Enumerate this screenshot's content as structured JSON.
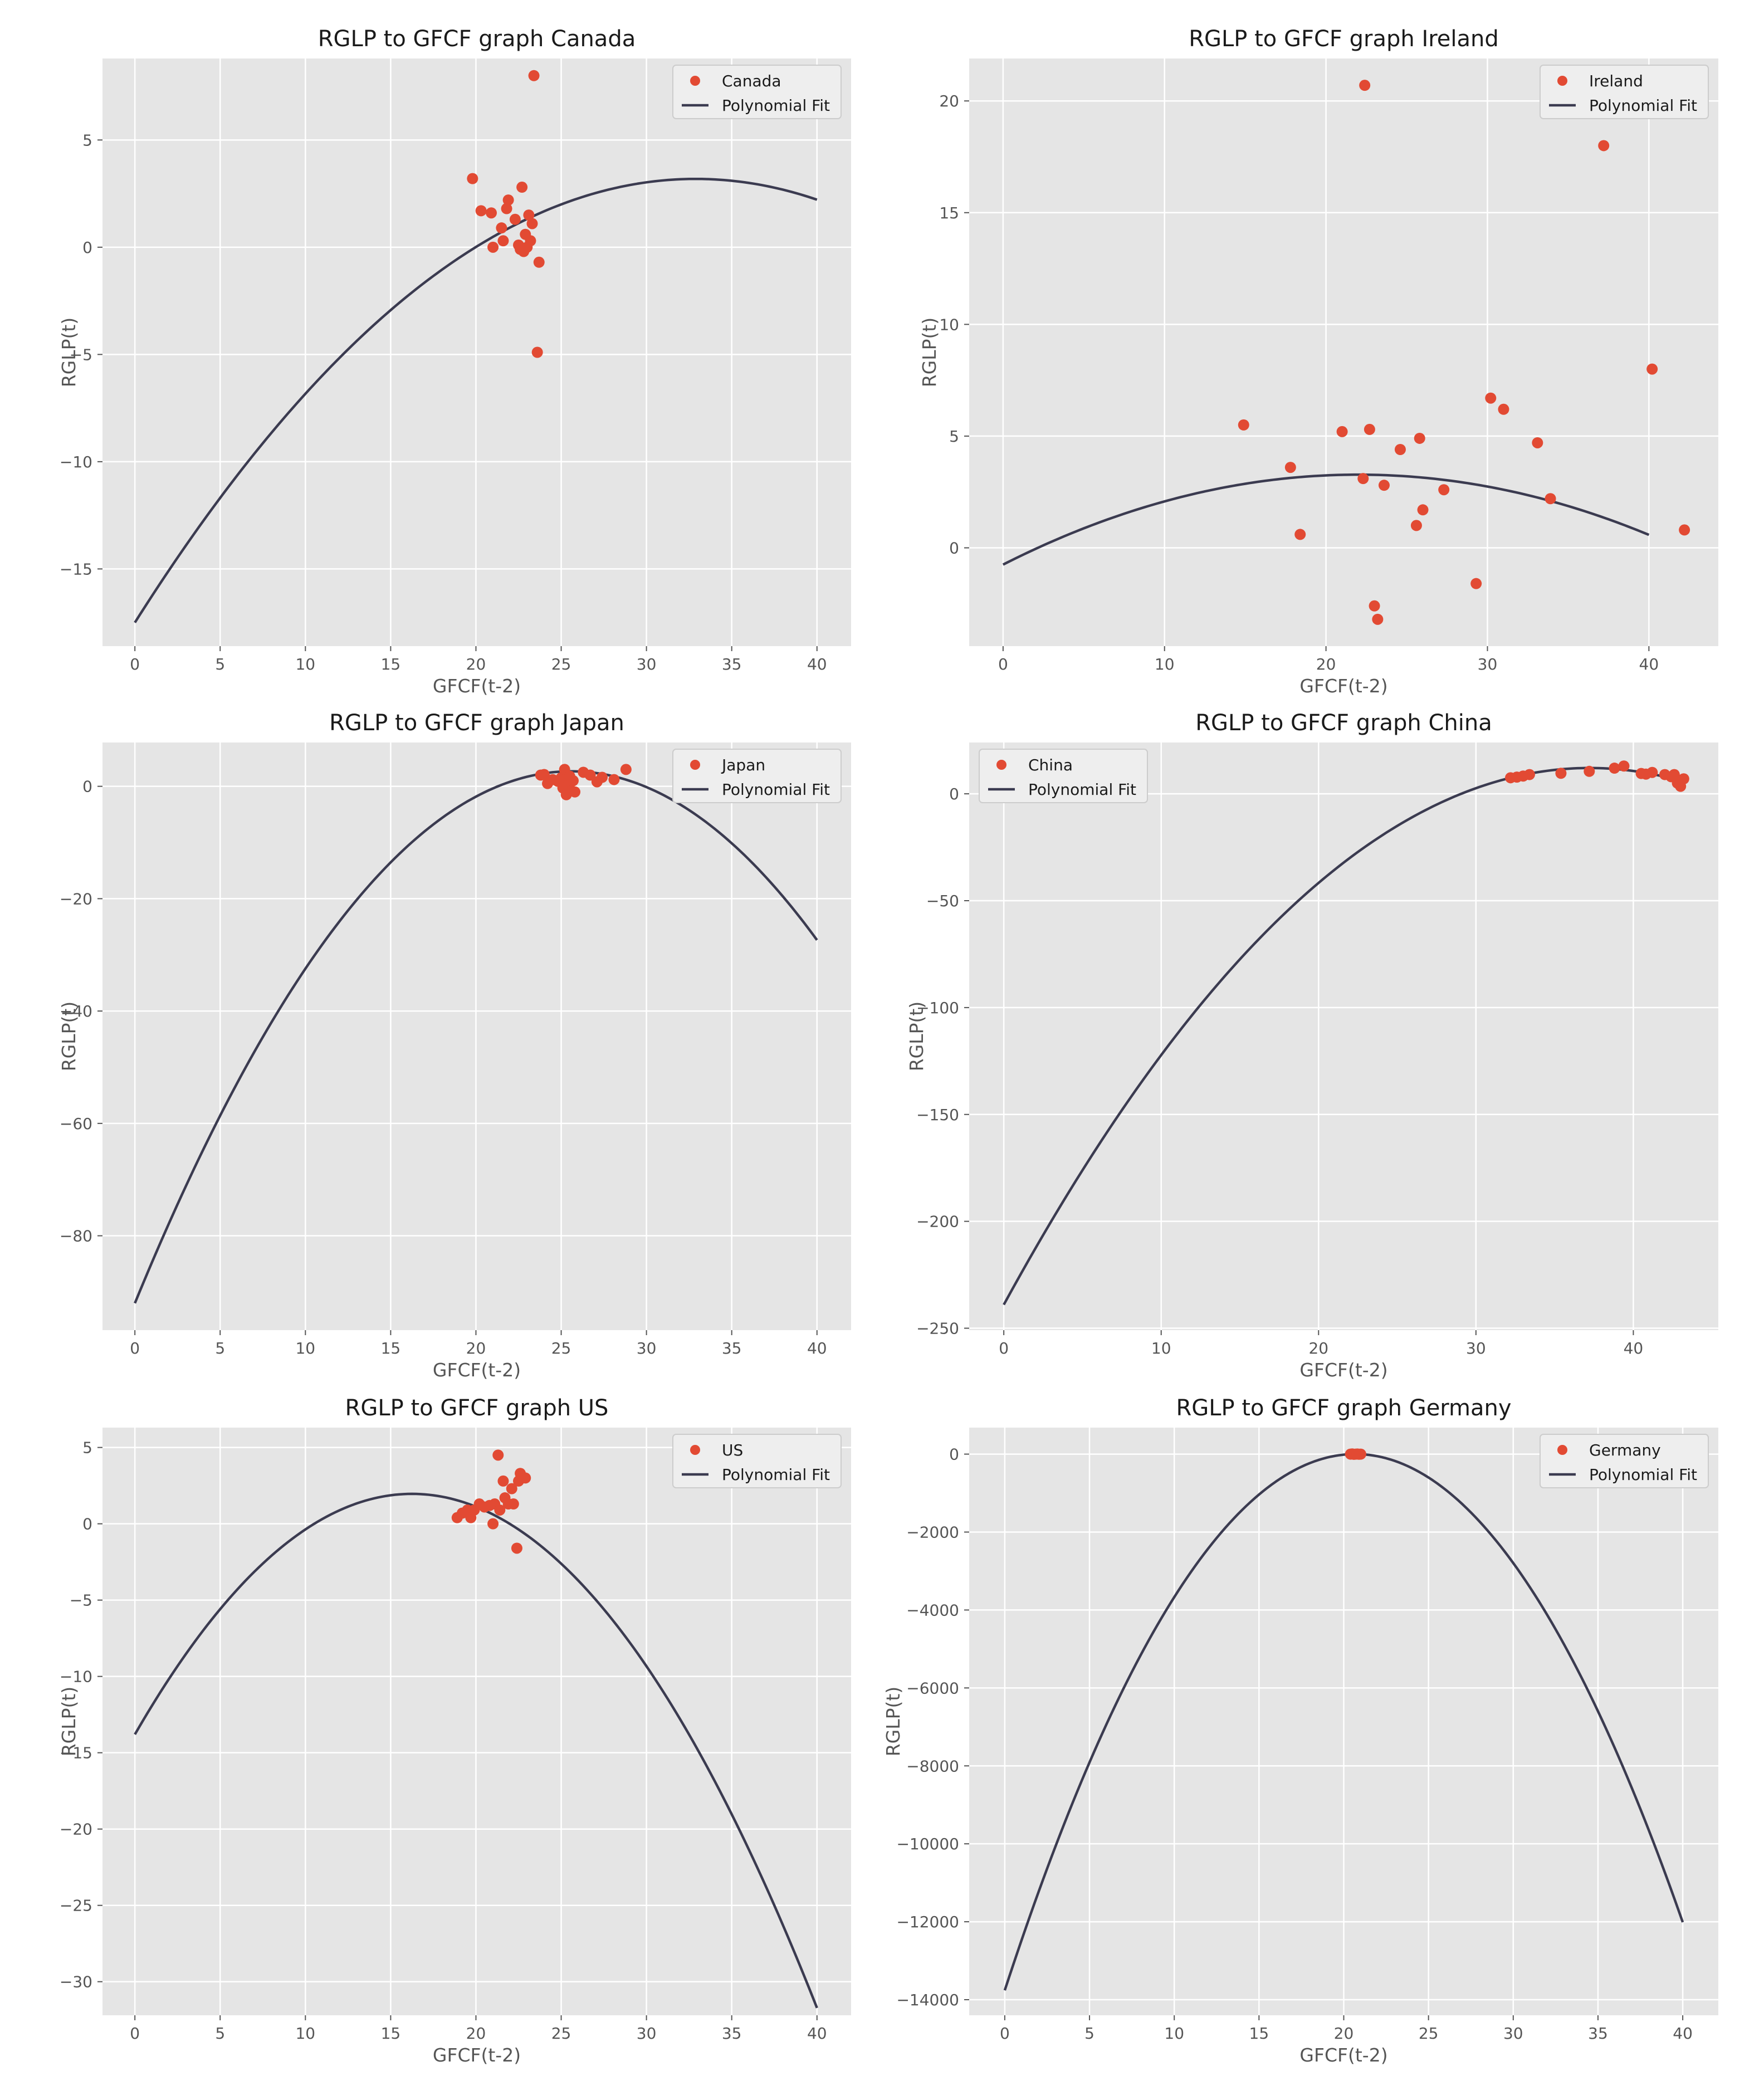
{
  "colors": {
    "plot_background": "#e5e5e5",
    "grid": "#ffffff",
    "scatter": "#e24a33",
    "fit_line": "#3b3b50",
    "legend_background": "#eeeeee",
    "legend_border": "#cccccc"
  },
  "chart_data": [
    {
      "type": "scatter",
      "title": "RGLP to GFCF graph Canada",
      "xlabel": "GFCF(t-2)",
      "ylabel": "RGLP(t)",
      "xlim": [
        -1.9,
        42
      ],
      "ylim": [
        -18.6,
        8.8
      ],
      "xticks": [
        0,
        5,
        10,
        15,
        20,
        25,
        30,
        35,
        40
      ],
      "yticks": [
        -15,
        -10,
        -5,
        0,
        5
      ],
      "legend_position": "top-right",
      "series": [
        {
          "name": "Canada",
          "kind": "scatter",
          "points": [
            [
              19.8,
              3.2
            ],
            [
              20.3,
              1.7
            ],
            [
              20.9,
              1.6
            ],
            [
              21.0,
              0.0
            ],
            [
              21.5,
              0.9
            ],
            [
              21.6,
              0.3
            ],
            [
              21.8,
              1.8
            ],
            [
              21.9,
              2.2
            ],
            [
              22.3,
              1.3
            ],
            [
              22.5,
              0.1
            ],
            [
              22.7,
              2.8
            ],
            [
              22.8,
              -0.2
            ],
            [
              22.9,
              0.6
            ],
            [
              23.0,
              0.0
            ],
            [
              23.1,
              1.5
            ],
            [
              23.2,
              0.3
            ],
            [
              23.3,
              1.1
            ],
            [
              23.4,
              8.0
            ],
            [
              23.6,
              -4.9
            ],
            [
              23.7,
              -0.7
            ],
            [
              22.6,
              -0.1
            ]
          ]
        },
        {
          "name": "Polynomial Fit",
          "kind": "line",
          "x_range": [
            0,
            40
          ],
          "coefficients": [
            -17.5,
            1.2581,
            -0.01913
          ]
        }
      ]
    },
    {
      "type": "scatter",
      "title": "RGLP to GFCF graph Ireland",
      "xlabel": "GFCF(t-2)",
      "ylabel": "RGLP(t)",
      "xlim": [
        -2.1,
        44.3
      ],
      "ylim": [
        -4.4,
        21.9
      ],
      "xticks": [
        0,
        10,
        20,
        30,
        40
      ],
      "yticks": [
        0,
        5,
        10,
        15,
        20
      ],
      "legend_position": "top-right",
      "series": [
        {
          "name": "Ireland",
          "kind": "scatter",
          "points": [
            [
              14.9,
              5.5
            ],
            [
              17.8,
              3.6
            ],
            [
              18.4,
              0.6
            ],
            [
              21.0,
              5.2
            ],
            [
              22.3,
              3.1
            ],
            [
              22.4,
              20.7
            ],
            [
              22.7,
              5.3
            ],
            [
              23.0,
              -2.6
            ],
            [
              23.2,
              -3.2
            ],
            [
              23.6,
              2.8
            ],
            [
              24.6,
              4.4
            ],
            [
              25.6,
              1.0
            ],
            [
              25.8,
              4.9
            ],
            [
              26.0,
              1.7
            ],
            [
              27.3,
              2.6
            ],
            [
              29.3,
              -1.6
            ],
            [
              30.2,
              6.7
            ],
            [
              31.0,
              6.2
            ],
            [
              33.1,
              4.7
            ],
            [
              33.9,
              2.2
            ],
            [
              37.2,
              18.0
            ],
            [
              40.2,
              8.0
            ],
            [
              42.2,
              0.8
            ]
          ]
        },
        {
          "name": "Polynomial Fit",
          "kind": "line",
          "x_range": [
            0,
            40
          ],
          "coefficients": [
            -0.75,
            0.3659,
            -0.008316
          ]
        }
      ]
    },
    {
      "type": "scatter",
      "title": "RGLP to GFCF graph Japan",
      "xlabel": "GFCF(t-2)",
      "ylabel": "RGLP(t)",
      "xlim": [
        -1.9,
        42
      ],
      "ylim": [
        -96.8,
        7.8
      ],
      "xticks": [
        0,
        5,
        10,
        15,
        20,
        25,
        30,
        35,
        40
      ],
      "yticks": [
        -80,
        -60,
        -40,
        -20,
        0
      ],
      "legend_position": "top-right",
      "series": [
        {
          "name": "Japan",
          "kind": "scatter",
          "points": [
            [
              23.8,
              2.0
            ],
            [
              24.0,
              2.1
            ],
            [
              24.2,
              0.5
            ],
            [
              24.5,
              1.2
            ],
            [
              24.8,
              0.9
            ],
            [
              25.0,
              1.5
            ],
            [
              25.1,
              -0.3
            ],
            [
              25.2,
              3.0
            ],
            [
              25.3,
              -1.5
            ],
            [
              25.4,
              0.2
            ],
            [
              25.5,
              1.8
            ],
            [
              25.6,
              -0.8
            ],
            [
              25.7,
              1.0
            ],
            [
              25.8,
              -1.0
            ],
            [
              26.3,
              2.5
            ],
            [
              26.7,
              2.0
            ],
            [
              27.1,
              0.8
            ],
            [
              27.4,
              1.6
            ],
            [
              28.1,
              1.2
            ],
            [
              28.8,
              3.0
            ]
          ]
        },
        {
          "name": "Polynomial Fit",
          "kind": "line",
          "x_range": [
            0,
            40
          ],
          "coefficients": [
            -92.0,
            7.4,
            -0.1446
          ]
        }
      ]
    },
    {
      "type": "scatter",
      "title": "RGLP to GFCF graph China",
      "xlabel": "GFCF(t-2)",
      "ylabel": "RGLP(t)",
      "xlim": [
        -2.2,
        45.4
      ],
      "ylim": [
        -250.9,
        24.0
      ],
      "xticks": [
        0,
        10,
        20,
        30,
        40
      ],
      "yticks": [
        -250,
        -200,
        -150,
        -100,
        -50,
        0
      ],
      "legend_position": "top-left",
      "series": [
        {
          "name": "China",
          "kind": "scatter",
          "points": [
            [
              32.2,
              7.5
            ],
            [
              32.6,
              7.8
            ],
            [
              33.0,
              8.3
            ],
            [
              33.4,
              9.0
            ],
            [
              35.4,
              9.6
            ],
            [
              37.2,
              10.5
            ],
            [
              38.8,
              12.0
            ],
            [
              39.4,
              13.0
            ],
            [
              40.5,
              9.5
            ],
            [
              40.8,
              9.2
            ],
            [
              41.2,
              10.0
            ],
            [
              42.0,
              9.0
            ],
            [
              42.4,
              8.0
            ],
            [
              42.6,
              9.0
            ],
            [
              42.8,
              5.0
            ],
            [
              43.0,
              3.5
            ],
            [
              43.2,
              7.0
            ]
          ]
        },
        {
          "name": "Polynomial Fit",
          "kind": "line",
          "x_range": [
            0,
            43.2
          ],
          "coefficients": [
            -239.0,
            13.49,
            -0.1812
          ]
        }
      ]
    },
    {
      "type": "scatter",
      "title": "RGLP to GFCF graph US",
      "xlabel": "GFCF(t-2)",
      "ylabel": "RGLP(t)",
      "xlim": [
        -1.9,
        42
      ],
      "ylim": [
        -32.2,
        6.3
      ],
      "xticks": [
        0,
        5,
        10,
        15,
        20,
        25,
        30,
        35,
        40
      ],
      "yticks": [
        -30,
        -25,
        -20,
        -15,
        -10,
        -5,
        0,
        5
      ],
      "legend_position": "top-right",
      "series": [
        {
          "name": "US",
          "kind": "scatter",
          "points": [
            [
              18.9,
              0.4
            ],
            [
              19.2,
              0.7
            ],
            [
              19.5,
              0.9
            ],
            [
              19.7,
              0.4
            ],
            [
              19.9,
              0.9
            ],
            [
              20.2,
              1.3
            ],
            [
              20.5,
              1.1
            ],
            [
              20.8,
              1.2
            ],
            [
              21.0,
              0.0
            ],
            [
              21.1,
              1.3
            ],
            [
              21.3,
              4.5
            ],
            [
              21.4,
              0.9
            ],
            [
              21.6,
              2.8
            ],
            [
              21.7,
              1.7
            ],
            [
              21.9,
              1.3
            ],
            [
              22.1,
              2.3
            ],
            [
              22.2,
              1.3
            ],
            [
              22.4,
              -1.6
            ],
            [
              22.5,
              2.8
            ],
            [
              22.6,
              3.3
            ],
            [
              22.9,
              3.0
            ]
          ]
        },
        {
          "name": "Polynomial Fit",
          "kind": "line",
          "x_range": [
            0,
            40
          ],
          "coefficients": [
            -13.8,
            1.94,
            -0.0597
          ]
        }
      ]
    },
    {
      "type": "scatter",
      "title": "RGLP to GFCF graph Germany",
      "xlabel": "GFCF(t-2)",
      "ylabel": "RGLP(t)",
      "xlim": [
        -2.1,
        42.1
      ],
      "ylim": [
        -14400,
        680
      ],
      "xticks": [
        0,
        5,
        10,
        15,
        20,
        25,
        30,
        35,
        40
      ],
      "yticks": [
        -14000,
        -12000,
        -10000,
        -8000,
        -6000,
        -4000,
        -2000,
        0
      ],
      "legend_position": "top-right",
      "series": [
        {
          "name": "Germany",
          "kind": "scatter",
          "points": [
            [
              20.4,
              0
            ],
            [
              20.5,
              5
            ],
            [
              20.6,
              -5
            ],
            [
              20.7,
              0
            ],
            [
              20.8,
              3
            ],
            [
              20.9,
              -3
            ],
            [
              21.0,
              0
            ]
          ]
        },
        {
          "name": "Polynomial Fit",
          "kind": "line",
          "x_range": [
            0,
            40
          ],
          "coefficients": [
            -13760,
            1330.9,
            -32.18
          ]
        }
      ]
    }
  ]
}
